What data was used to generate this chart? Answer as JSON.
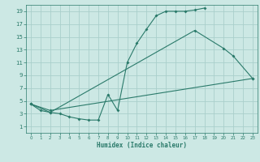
{
  "title": "",
  "xlabel": "Humidex (Indice chaleur)",
  "bg_color": "#cce8e4",
  "grid_color": "#aacfcb",
  "line_color": "#2a7a6a",
  "xlim": [
    -0.5,
    23.5
  ],
  "ylim": [
    0,
    20
  ],
  "xticks": [
    0,
    1,
    2,
    3,
    4,
    5,
    6,
    7,
    8,
    9,
    10,
    11,
    12,
    13,
    14,
    15,
    16,
    17,
    18,
    19,
    20,
    21,
    22,
    23
  ],
  "yticks": [
    1,
    3,
    5,
    7,
    9,
    11,
    13,
    15,
    17,
    19
  ],
  "line1_x": [
    0,
    1,
    2,
    3,
    4,
    5,
    6,
    7,
    8,
    9,
    10,
    11,
    12,
    13,
    14,
    15,
    16,
    17,
    18
  ],
  "line1_y": [
    4.5,
    3.5,
    3.2,
    3.0,
    2.5,
    2.2,
    2.0,
    2.0,
    6.0,
    3.5,
    11.0,
    14.0,
    16.2,
    18.3,
    19.0,
    19.0,
    19.0,
    19.2,
    19.5
  ],
  "line2_x": [
    0,
    2,
    17,
    20,
    21,
    23
  ],
  "line2_y": [
    4.5,
    3.2,
    16.0,
    13.2,
    12.0,
    8.5
  ],
  "line3_x": [
    0,
    2,
    23
  ],
  "line3_y": [
    4.5,
    3.5,
    8.5
  ]
}
